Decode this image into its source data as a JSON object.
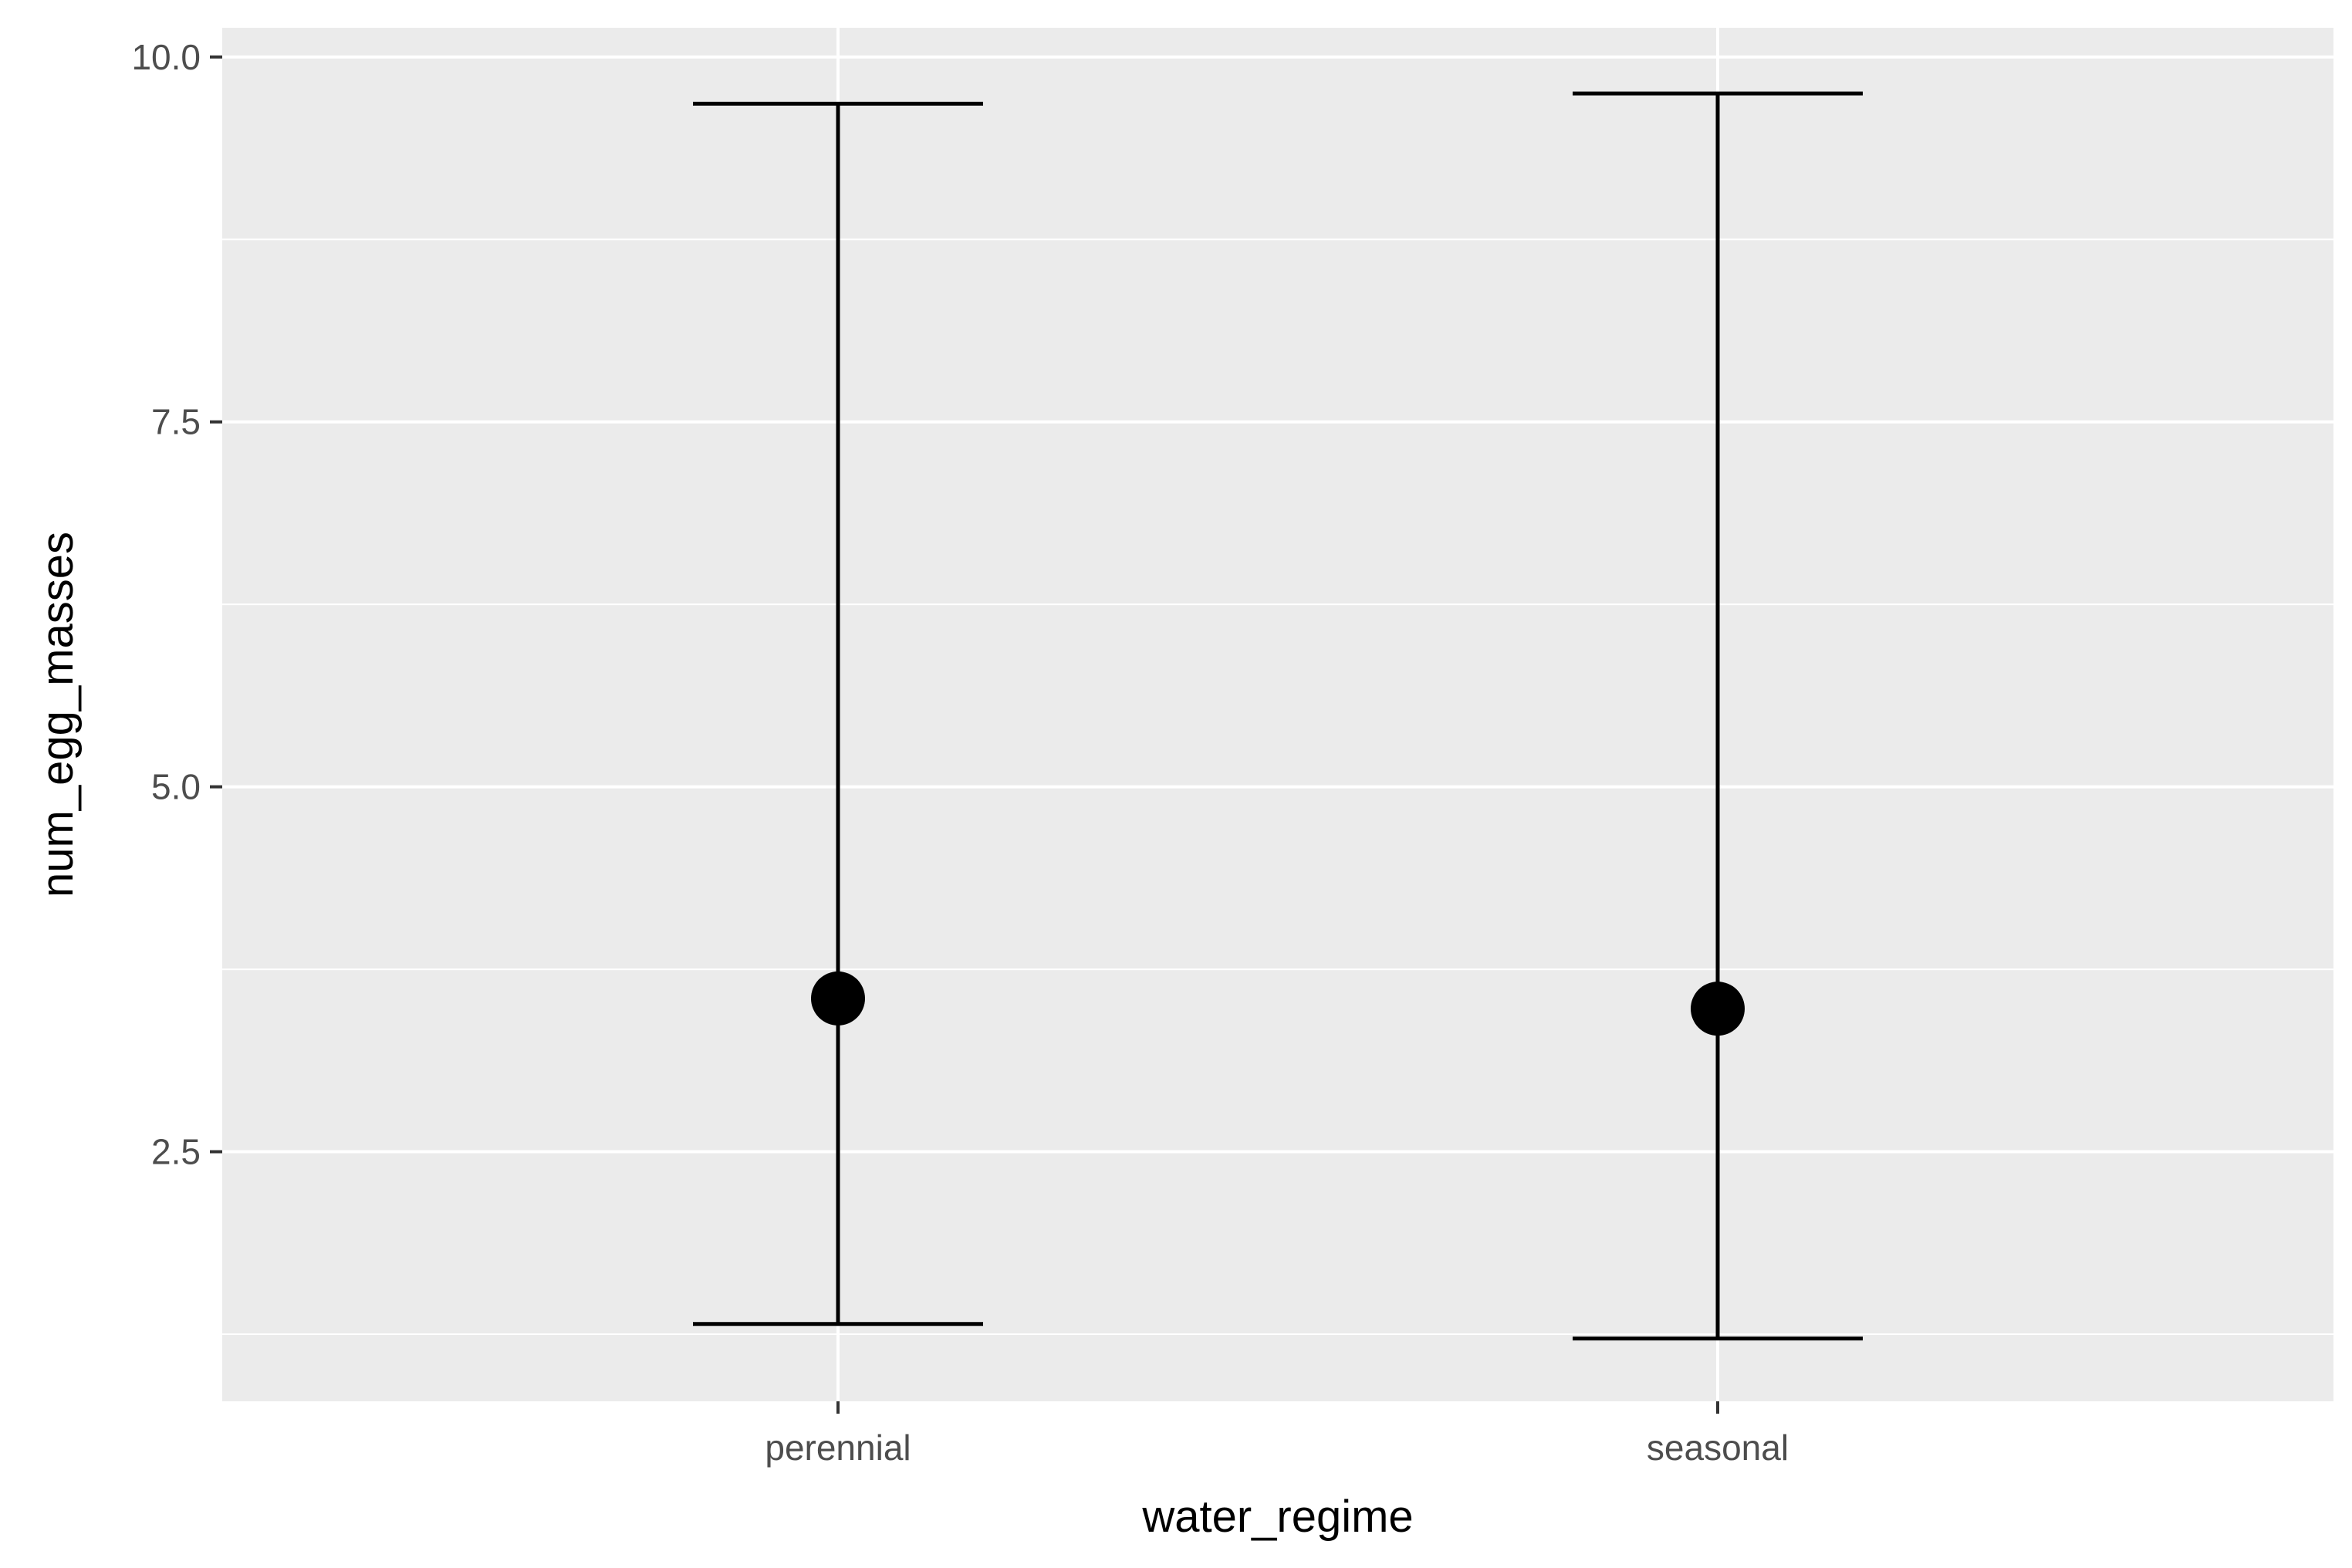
{
  "chart_data": {
    "type": "scatter",
    "xlabel": "water_regime",
    "ylabel": "num_egg_masses",
    "categories": [
      "perennial",
      "seasonal"
    ],
    "values": [
      3.55,
      3.48
    ],
    "error_low": [
      1.32,
      1.22
    ],
    "error_high": [
      9.68,
      9.75
    ],
    "ylim": [
      0.79,
      10.2
    ],
    "yticks": [
      2.5,
      5.0,
      7.5,
      10.0
    ],
    "ytick_labels": [
      "2.5",
      "5.0",
      "7.5",
      "10.0"
    ],
    "grid": true,
    "legend": "none",
    "colors": {
      "panel_background": "#ebebeb",
      "grid": "#ffffff",
      "mark": "#000000",
      "tick_label": "#4d4d4d",
      "axis_tick": "#333333"
    }
  }
}
